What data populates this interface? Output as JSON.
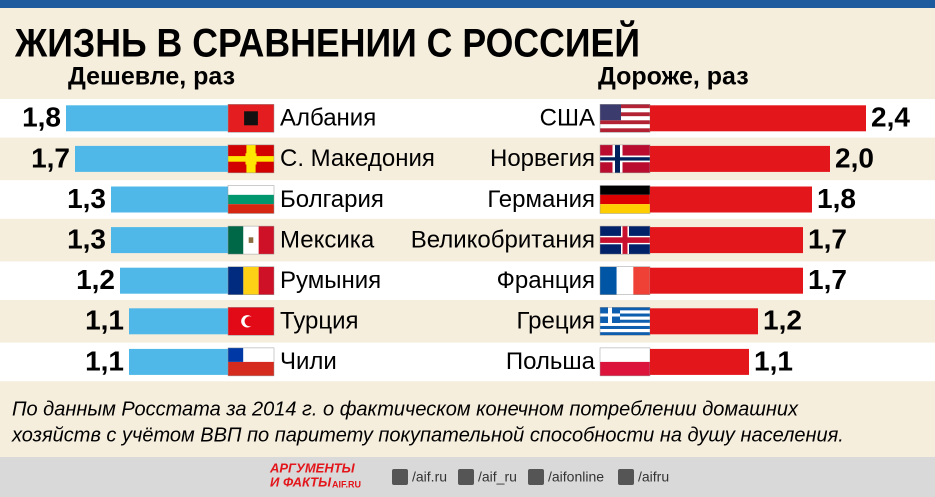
{
  "title": "ЖИЗНЬ В СРАВНЕНИИ С РОССИЕЙ",
  "chart_data": [
    {
      "type": "bar",
      "title": "Дешевле, раз",
      "color": "#4fb8e8",
      "categories": [
        "Албания",
        "С. Македония",
        "Болгария",
        "Мексика",
        "Румыния",
        "Турция",
        "Чили"
      ],
      "values": [
        1.8,
        1.7,
        1.3,
        1.3,
        1.2,
        1.1,
        1.1
      ],
      "value_labels": [
        "1,8",
        "1,7",
        "1,3",
        "1,3",
        "1,2",
        "1,1",
        "1,1"
      ]
    },
    {
      "type": "bar",
      "title": "Дороже, раз",
      "color": "#e3161b",
      "categories": [
        "США",
        "Норвегия",
        "Германия",
        "Великобритания",
        "Франция",
        "Греция",
        "Польша"
      ],
      "values": [
        2.4,
        2.0,
        1.8,
        1.7,
        1.7,
        1.2,
        1.1
      ],
      "value_labels": [
        "2,4",
        "2,0",
        "1,8",
        "1,7",
        "1,7",
        "1,2",
        "1,1"
      ]
    }
  ],
  "note": [
    "По данным Росстата за 2014 г. о фактическом конечном потреблении домашних",
    "хозяйств с учётом ВВП по паритету покупательной способности на душу населения."
  ],
  "logo": [
    "АРГУМЕНТЫ",
    "И ФАКТЫ",
    "AIF.RU"
  ],
  "social": [
    "/aif.ru",
    "/aif_ru",
    "/aifonline",
    "/aifru"
  ]
}
